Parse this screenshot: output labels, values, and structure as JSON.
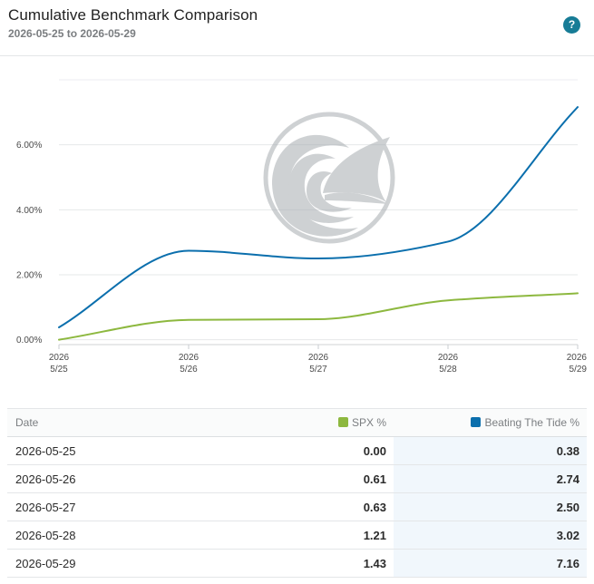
{
  "header": {
    "title": "Cumulative Benchmark Comparison",
    "subtitle": "2026-05-25 to 2026-05-29",
    "help_label": "?"
  },
  "watermark": {
    "icon": "wave-fin-logo-icon"
  },
  "colors": {
    "spx": "#8db83f",
    "btt": "#0b6fad",
    "grid": "#e6e8ea",
    "help": "#177c96"
  },
  "chart_data": {
    "type": "line",
    "x": [
      "2026-05-25",
      "2026-05-26",
      "2026-05-27",
      "2026-05-28",
      "2026-05-29"
    ],
    "x_tick_labels": [
      [
        "2026",
        "5/25"
      ],
      [
        "2026",
        "5/26"
      ],
      [
        "2026",
        "5/27"
      ],
      [
        "2026",
        "5/28"
      ],
      [
        "2026",
        "5/29"
      ]
    ],
    "y_ticks": [
      0,
      2,
      4,
      6
    ],
    "y_tick_labels": [
      "0.00%",
      "2.00%",
      "4.00%",
      "6.00%"
    ],
    "ylim": [
      -0.15,
      8
    ],
    "grid": "horizontal",
    "series": [
      {
        "name": "SPX %",
        "color": "#8db83f",
        "values": [
          0.0,
          0.61,
          0.63,
          1.21,
          1.43
        ]
      },
      {
        "name": "Beating The Tide %",
        "color": "#0b6fad",
        "values": [
          0.38,
          2.74,
          2.5,
          3.02,
          7.16
        ]
      }
    ]
  },
  "table": {
    "headers": {
      "date": "Date",
      "spx": "SPX %",
      "btt": "Beating The Tide %"
    },
    "rows": [
      {
        "date": "2026-05-25",
        "spx": "0.00",
        "btt": "0.38"
      },
      {
        "date": "2026-05-26",
        "spx": "0.61",
        "btt": "2.74"
      },
      {
        "date": "2026-05-27",
        "spx": "0.63",
        "btt": "2.50"
      },
      {
        "date": "2026-05-28",
        "spx": "1.21",
        "btt": "3.02"
      },
      {
        "date": "2026-05-29",
        "spx": "1.43",
        "btt": "7.16"
      }
    ]
  }
}
